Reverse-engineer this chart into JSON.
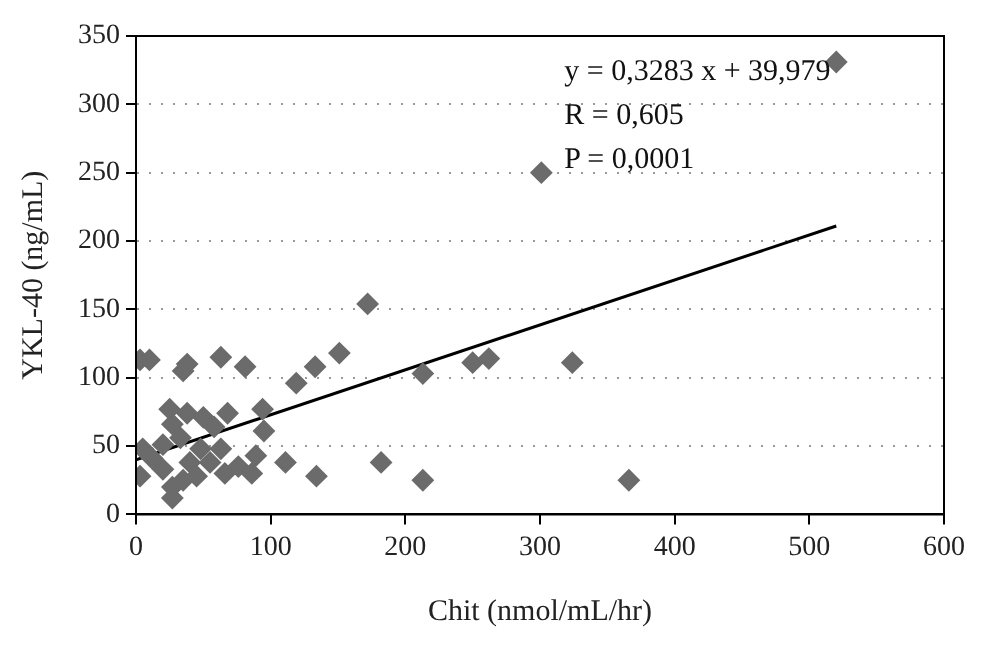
{
  "chart_data": {
    "type": "scatter",
    "xlabel": "Chit (nmol/mL/hr)",
    "ylabel": "YKL-40 (ng/mL)",
    "xlim": [
      0,
      600
    ],
    "xticks": [
      0,
      100,
      200,
      300,
      400,
      500,
      600
    ],
    "ylim": [
      0,
      350
    ],
    "yticks": [
      0,
      50,
      100,
      150,
      200,
      250,
      300,
      350
    ],
    "grid": "y",
    "marker": "diamond",
    "legend": false,
    "annotations": [
      "y = 0,3283 x + 39,979",
      "R = 0,605",
      "P = 0,0001"
    ],
    "series": [
      {
        "color": "#6b6b6b",
        "x": [
          3,
          5,
          3,
          10,
          38,
          35,
          63,
          81,
          119,
          133,
          151,
          172,
          94,
          95,
          111,
          134,
          182,
          213,
          213,
          250,
          262,
          324,
          301,
          520,
          366,
          25,
          27,
          38,
          50,
          68,
          58,
          20,
          12,
          20,
          27,
          27,
          35,
          40,
          48,
          45,
          63,
          66,
          76,
          86,
          89,
          55,
          33
        ],
        "values": [
          28,
          48,
          113,
          113,
          110,
          105,
          115,
          108,
          96,
          108,
          118,
          154,
          77,
          61,
          38,
          28,
          38,
          25,
          103,
          111,
          114,
          111,
          250,
          331,
          25,
          77,
          66,
          74,
          71,
          74,
          64,
          51,
          41,
          33,
          20,
          12,
          25,
          38,
          48,
          28,
          48,
          30,
          35,
          30,
          43,
          38,
          56
        ]
      },
      {
        "type": "line",
        "marker": "none",
        "color": "#000000",
        "x": [
          0,
          520
        ],
        "values": [
          40,
          211
        ]
      }
    ]
  }
}
